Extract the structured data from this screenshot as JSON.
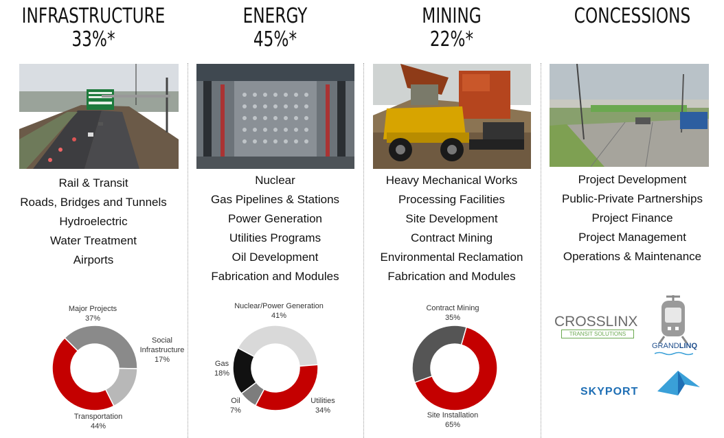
{
  "columns": [
    {
      "title": "INFRASTRUCTURE",
      "percent": "33%*",
      "items": [
        "Rail & Transit",
        "Roads, Bridges and Tunnels",
        "Hydroelectric",
        "Water Treatment",
        "Airports"
      ],
      "chart_data": {
        "type": "pie",
        "slices": [
          {
            "name": "Major Projects",
            "value": 37,
            "label": "37%",
            "color": "#8a8a8a"
          },
          {
            "name": "Social Infrastructure",
            "value": 17,
            "label": "17%",
            "color": "#b8b8b8"
          },
          {
            "name": "Transportation",
            "value": 44,
            "label": "44%",
            "color": "#c40000"
          }
        ]
      }
    },
    {
      "title": "ENERGY",
      "percent": "45%*",
      "items": [
        "Nuclear",
        "Gas Pipelines & Stations",
        "Power Generation",
        "Utilities Programs",
        "Oil Development",
        "Fabrication and Modules"
      ],
      "chart_data": {
        "type": "pie",
        "slices": [
          {
            "name": "Nuclear/Power Generation",
            "value": 41,
            "label": "41%",
            "color": "#d9d9d9"
          },
          {
            "name": "Utilities",
            "value": 34,
            "label": "34%",
            "color": "#c40000"
          },
          {
            "name": "Oil",
            "value": 7,
            "label": "7%",
            "color": "#7d7d7d"
          },
          {
            "name": "Gas",
            "value": 18,
            "label": "18%",
            "color": "#111111"
          }
        ]
      }
    },
    {
      "title": "MINING",
      "percent": "22%*",
      "items": [
        "Heavy Mechanical Works",
        "Processing Facilities",
        "Site Development",
        "Contract Mining",
        "Environmental Reclamation",
        "Fabrication and Modules"
      ],
      "chart_data": {
        "type": "pie",
        "slices": [
          {
            "name": "Contract Mining",
            "value": 35,
            "label": "35%",
            "color": "#555555"
          },
          {
            "name": "Site Installation",
            "value": 65,
            "label": "65%",
            "color": "#c40000"
          }
        ]
      }
    },
    {
      "title": "CONCESSIONS",
      "percent": "",
      "items": [
        "Project Development",
        "Public-Private Partnerships",
        "Project Finance",
        "Project Management",
        "Operations & Maintenance"
      ],
      "logos": {
        "crosslinx": {
          "main": "CROSSLINX",
          "sub": "TRANSIT SOLUTIONS"
        },
        "grandlinq": {
          "part1": "GRAND",
          "part2": "LINQ"
        },
        "skyport": "SKYPORT"
      }
    }
  ],
  "labels": {
    "infra_major": "Major Projects",
    "infra_social_1": "Social",
    "infra_social_2": "Infrastructure",
    "infra_transport": "Transportation",
    "energy_nuclear": "Nuclear/Power Generation",
    "energy_utilities": "Utilities",
    "energy_oil": "Oil",
    "energy_gas": "Gas",
    "mining_contract": "Contract Mining",
    "mining_site": "Site Installation"
  },
  "colors": {
    "red": "#c40000",
    "green": "#6aa84f",
    "blue": "#1f6fb5",
    "skyblue": "#3aa0d8"
  }
}
